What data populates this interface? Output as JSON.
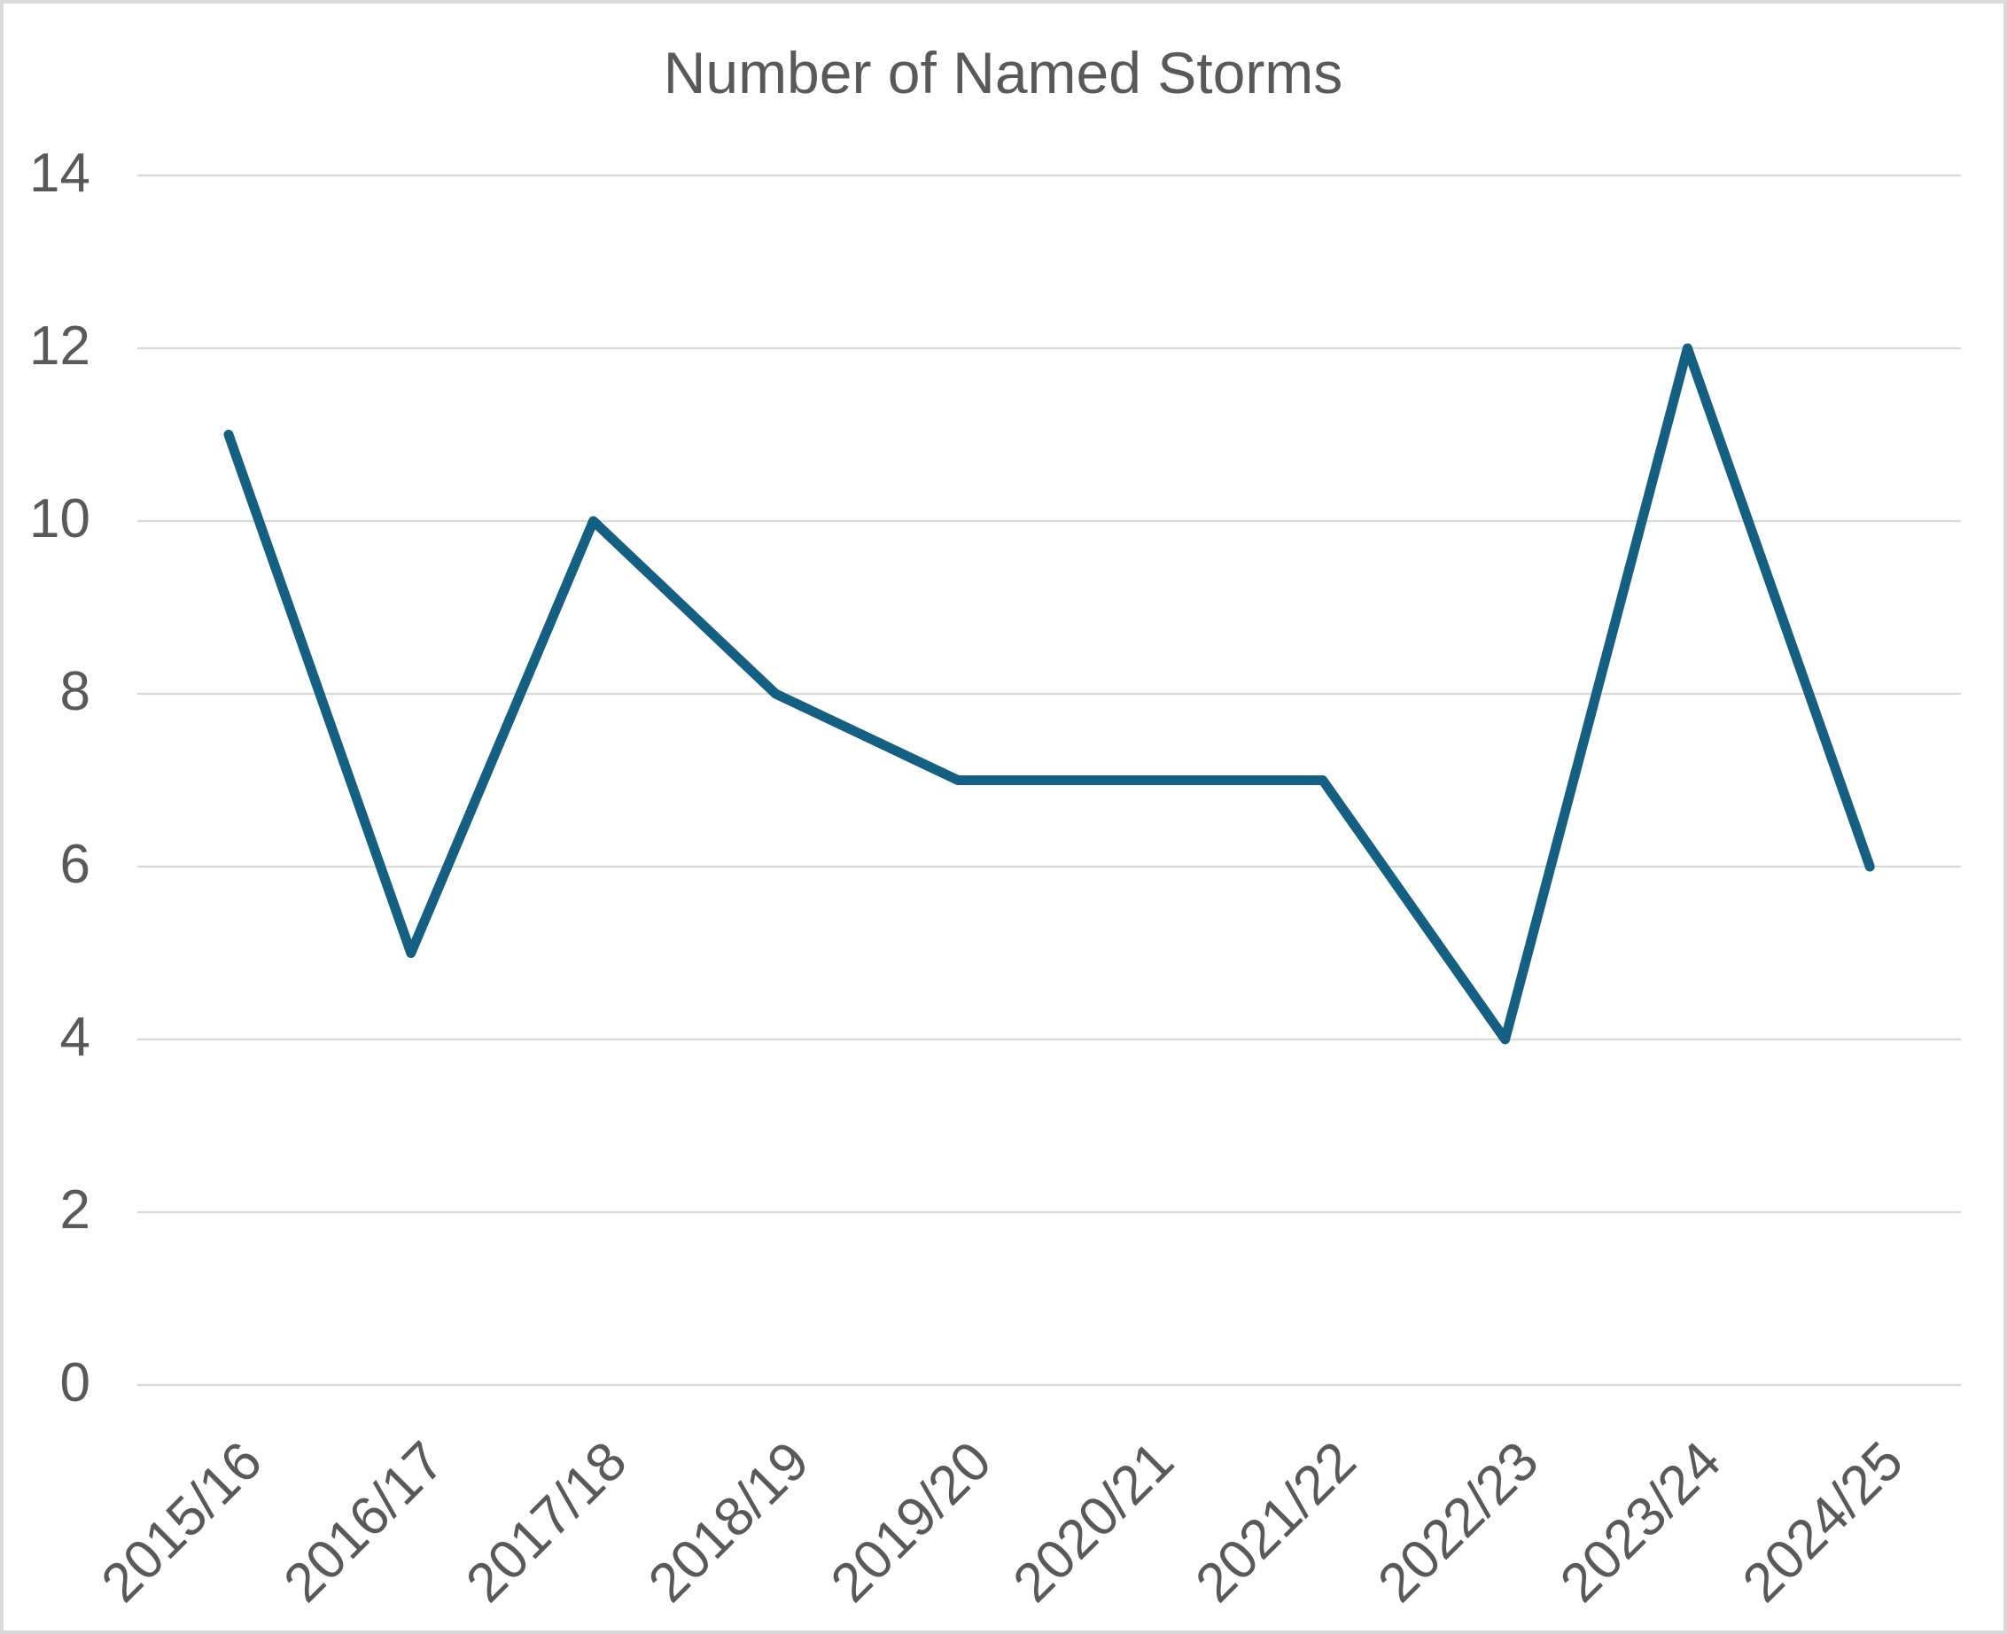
{
  "chart": {
    "colors": {
      "line": "#156082",
      "gridline": "#D9D9D9",
      "text": "#595959",
      "border": "#D9D9D9",
      "background": "#FFFFFF"
    }
  },
  "chart_data": {
    "type": "line",
    "title": "Number of Named Storms",
    "categories": [
      "2015/16",
      "2016/17",
      "2017/18",
      "2018/19",
      "2019/20",
      "2020/21",
      "2021/22",
      "2022/23",
      "2023/24",
      "2024/25"
    ],
    "values": [
      11,
      5,
      10,
      8,
      7,
      7,
      7,
      4,
      12,
      6
    ],
    "xlabel": "",
    "ylabel": "",
    "ylim": [
      0,
      14
    ],
    "ytick_step": 2,
    "yticks": [
      0,
      2,
      4,
      6,
      8,
      10,
      12,
      14
    ],
    "grid": true,
    "legend": false,
    "x_tick_rotation": 45
  }
}
